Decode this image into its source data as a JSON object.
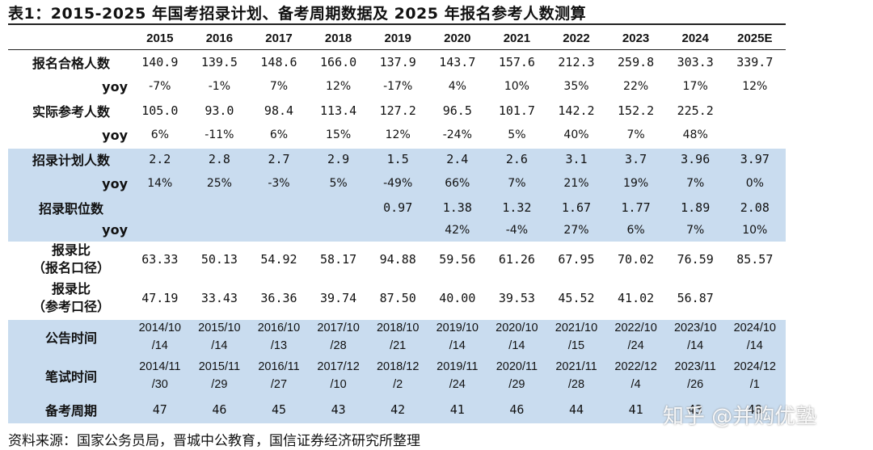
{
  "title": "表1：2015-2025 年国考招录计划、备考周期数据及 2025 年报名参考人数测算",
  "years": [
    "2015",
    "2016",
    "2017",
    "2018",
    "2019",
    "2020",
    "2021",
    "2022",
    "2023",
    "2024",
    "2025E"
  ],
  "rows": [
    {
      "label": "报名合格人数",
      "kind": "val",
      "values": [
        "140.9",
        "139.5",
        "148.6",
        "166.0",
        "137.9",
        "143.7",
        "157.6",
        "212.3",
        "259.8",
        "303.3",
        "339.7"
      ]
    },
    {
      "label": "yoy",
      "kind": "pct",
      "values": [
        "-7%",
        "-1%",
        "7%",
        "12%",
        "-17%",
        "4%",
        "10%",
        "35%",
        "22%",
        "17%",
        "12%"
      ]
    },
    {
      "label": "实际参考人数",
      "kind": "val",
      "values": [
        "105.0",
        "93.0",
        "98.4",
        "113.4",
        "127.2",
        "96.5",
        "101.7",
        "142.2",
        "152.2",
        "225.2",
        ""
      ]
    },
    {
      "label": "yoy",
      "kind": "pct",
      "values": [
        "6%",
        "-11%",
        "6%",
        "15%",
        "12%",
        "-24%",
        "5%",
        "40%",
        "7%",
        "48%",
        ""
      ]
    },
    {
      "label": "招录计划人数",
      "kind": "val",
      "values": [
        "2.2",
        "2.8",
        "2.7",
        "2.9",
        "1.5",
        "2.4",
        "2.6",
        "3.1",
        "3.7",
        "3.96",
        "3.97"
      ]
    },
    {
      "label": "yoy",
      "kind": "pct",
      "values": [
        "14%",
        "25%",
        "-3%",
        "5%",
        "-49%",
        "66%",
        "7%",
        "21%",
        "19%",
        "7%",
        "0%"
      ]
    },
    {
      "label": "招录职位数",
      "kind": "val",
      "values": [
        "",
        "",
        "",
        "",
        "0.97",
        "1.38",
        "1.32",
        "1.67",
        "1.77",
        "1.89",
        "2.08"
      ]
    },
    {
      "label": "yoy",
      "kind": "pct",
      "values": [
        "",
        "",
        "",
        "",
        "",
        "42%",
        "-4%",
        "27%",
        "6%",
        "7%",
        "10%"
      ]
    },
    {
      "label": "报录比\n（报名口径）",
      "kind": "val",
      "values": [
        "63.33",
        "50.13",
        "54.92",
        "58.17",
        "94.88",
        "59.56",
        "61.26",
        "67.95",
        "70.02",
        "76.59",
        "85.57"
      ]
    },
    {
      "label": "报录比\n（参考口径）",
      "kind": "val",
      "values": [
        "47.19",
        "33.43",
        "36.36",
        "39.74",
        "87.50",
        "40.00",
        "39.53",
        "45.52",
        "41.02",
        "56.87",
        ""
      ]
    },
    {
      "label": "公告时间",
      "kind": "date",
      "values": [
        "2014/10\n/14",
        "2015/10\n/14",
        "2016/10\n/13",
        "2017/10\n/28",
        "2018/10\n/21",
        "2019/10\n/14",
        "2020/10\n/14",
        "2021/10\n/15",
        "2022/10\n/24",
        "2023/10\n/14",
        "2024/10\n/14"
      ]
    },
    {
      "label": "笔试时间",
      "kind": "date",
      "values": [
        "2014/11\n/30",
        "2015/11\n/29",
        "2016/11\n/27",
        "2017/12\n/10",
        "2018/12\n/2",
        "2019/11\n/24",
        "2020/11\n/29",
        "2021/11\n/28",
        "2022/12\n/4",
        "2023/11\n/26",
        "2024/12\n/1"
      ]
    },
    {
      "label": "备考周期",
      "kind": "val",
      "values": [
        "47",
        "46",
        "45",
        "43",
        "42",
        "41",
        "46",
        "44",
        "41",
        "43",
        "48"
      ]
    }
  ],
  "source": "资料来源：国家公务员局，晋城中公教育，国信证券经济研究所整理",
  "watermark": "知乎 @并购优塾"
}
